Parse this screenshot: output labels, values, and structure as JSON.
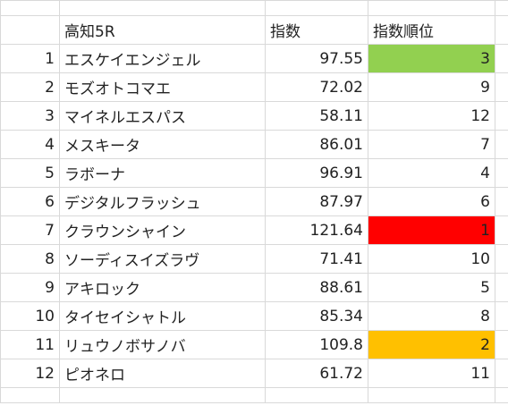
{
  "sheet": {
    "header": {
      "name": "高知5R",
      "index": "指数",
      "rank": "指数順位"
    },
    "rows": [
      {
        "no": "1",
        "name": "エスケイエンジェル",
        "index": "97.55",
        "rank": "3",
        "highlight": "#92d050"
      },
      {
        "no": "2",
        "name": "モズオトコマエ",
        "index": "72.02",
        "rank": "9",
        "highlight": ""
      },
      {
        "no": "3",
        "name": "マイネルエスパス",
        "index": "58.11",
        "rank": "12",
        "highlight": ""
      },
      {
        "no": "4",
        "name": "メスキータ",
        "index": "86.01",
        "rank": "7",
        "highlight": ""
      },
      {
        "no": "5",
        "name": "ラボーナ",
        "index": "96.91",
        "rank": "4",
        "highlight": ""
      },
      {
        "no": "6",
        "name": "デジタルフラッシュ",
        "index": "87.97",
        "rank": "6",
        "highlight": ""
      },
      {
        "no": "7",
        "name": "クラウンシャイン",
        "index": "121.64",
        "rank": "1",
        "highlight": "#ff0000"
      },
      {
        "no": "8",
        "name": "ソーディスイズラヴ",
        "index": "71.41",
        "rank": "10",
        "highlight": ""
      },
      {
        "no": "9",
        "name": "アキロック",
        "index": "88.61",
        "rank": "5",
        "highlight": ""
      },
      {
        "no": "10",
        "name": "タイセイシャトル",
        "index": "85.34",
        "rank": "8",
        "highlight": ""
      },
      {
        "no": "11",
        "name": "リュウノボサノバ",
        "index": "109.8",
        "rank": "2",
        "highlight": "#ffc000"
      },
      {
        "no": "12",
        "name": "ピオネロ",
        "index": "61.72",
        "rank": "11",
        "highlight": ""
      }
    ]
  }
}
